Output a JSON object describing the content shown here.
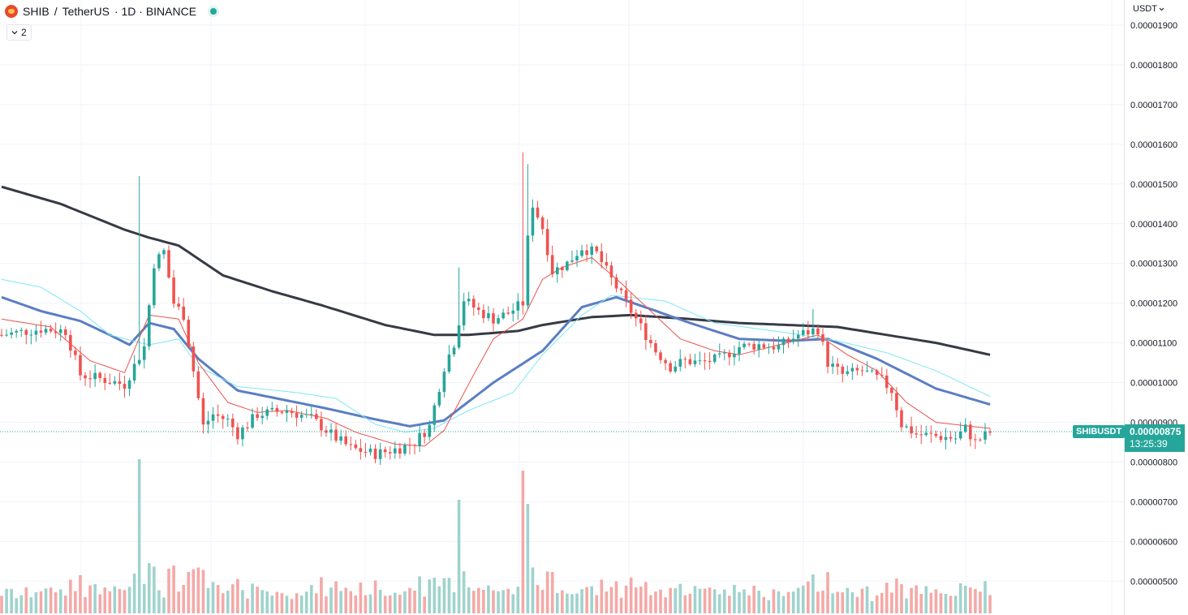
{
  "legend": {
    "symbol": "SHIB",
    "separator": "/",
    "quote_name": "TetherUS",
    "interval_exchange": "· 1D · BINANCE",
    "collapse_count": "2"
  },
  "currency_label": "USDT",
  "price_tag": {
    "symbol": "SHIBUSDT",
    "price": "0.00000875",
    "countdown": "13:25:39"
  },
  "colors": {
    "up": "#26a69a",
    "down": "#ef5350",
    "vol_up": "#9fd3cd",
    "vol_down": "#f4a9a7",
    "ma_fast": "#e8544e",
    "ma_mid": "#5b7ec2",
    "ma_light": "#7ee8f5",
    "ma_slow": "#363a45",
    "grid": "#f0f3fa"
  },
  "chart_data": {
    "type": "candlestick",
    "symbol": "SHIBUSDT",
    "exchange": "BINANCE",
    "interval": "1D",
    "currency": "USDT",
    "last_price": 8.75e-06,
    "y_ticks": [
      "0.00001900",
      "0.00001800",
      "0.00001700",
      "0.00001600",
      "0.00001500",
      "0.00001400",
      "0.00001300",
      "0.00001200",
      "0.00001100",
      "0.00001000",
      "0.00000900",
      "0.00000800",
      "0.00000700",
      "0.00000600",
      "0.00000500"
    ],
    "ylim": [
      4.58e-06,
      1.945e-05
    ],
    "price_anchors": [
      {
        "i": 0,
        "p": 11.2
      },
      {
        "i": 8,
        "p": 11.35
      },
      {
        "i": 13,
        "p": 11.3
      },
      {
        "i": 16,
        "p": 10.2
      },
      {
        "i": 20,
        "p": 10.1
      },
      {
        "i": 25,
        "p": 9.95
      },
      {
        "i": 29,
        "p": 10.9
      },
      {
        "i": 31,
        "p": 13.0
      },
      {
        "i": 33,
        "p": 13.3
      },
      {
        "i": 35,
        "p": 12.0
      },
      {
        "i": 37,
        "p": 11.7
      },
      {
        "i": 39,
        "p": 10.3
      },
      {
        "i": 41,
        "p": 8.9
      },
      {
        "i": 43,
        "p": 9.2
      },
      {
        "i": 46,
        "p": 9.05
      },
      {
        "i": 48,
        "p": 8.7
      },
      {
        "i": 52,
        "p": 9.2
      },
      {
        "i": 58,
        "p": 9.3
      },
      {
        "i": 63,
        "p": 9.1
      },
      {
        "i": 68,
        "p": 8.6
      },
      {
        "i": 71,
        "p": 8.35
      },
      {
        "i": 76,
        "p": 8.2
      },
      {
        "i": 81,
        "p": 8.35
      },
      {
        "i": 84,
        "p": 8.5
      },
      {
        "i": 87,
        "p": 8.9
      },
      {
        "i": 90,
        "p": 10.4
      },
      {
        "i": 92,
        "p": 11.0
      },
      {
        "i": 94,
        "p": 12.1
      },
      {
        "i": 97,
        "p": 11.8
      },
      {
        "i": 100,
        "p": 11.6
      },
      {
        "i": 103,
        "p": 11.75
      },
      {
        "i": 106,
        "p": 12.0
      },
      {
        "i": 107,
        "p": 13.6
      },
      {
        "i": 108,
        "p": 14.5
      },
      {
        "i": 110,
        "p": 13.9
      },
      {
        "i": 112,
        "p": 12.8
      },
      {
        "i": 115,
        "p": 13.0
      },
      {
        "i": 118,
        "p": 13.4
      },
      {
        "i": 121,
        "p": 13.25
      },
      {
        "i": 124,
        "p": 12.6
      },
      {
        "i": 127,
        "p": 12.0
      },
      {
        "i": 130,
        "p": 11.4
      },
      {
        "i": 133,
        "p": 10.8
      },
      {
        "i": 136,
        "p": 10.4
      },
      {
        "i": 139,
        "p": 10.55
      },
      {
        "i": 142,
        "p": 10.5
      },
      {
        "i": 146,
        "p": 10.6
      },
      {
        "i": 150,
        "p": 10.9
      },
      {
        "i": 154,
        "p": 10.95
      },
      {
        "i": 158,
        "p": 10.9
      },
      {
        "i": 162,
        "p": 11.2
      },
      {
        "i": 166,
        "p": 11.35
      },
      {
        "i": 168,
        "p": 10.5
      },
      {
        "i": 171,
        "p": 10.2
      },
      {
        "i": 175,
        "p": 10.3
      },
      {
        "i": 179,
        "p": 10.05
      },
      {
        "i": 181,
        "p": 9.8
      },
      {
        "i": 183,
        "p": 8.95
      },
      {
        "i": 186,
        "p": 8.7
      },
      {
        "i": 190,
        "p": 8.65
      },
      {
        "i": 194,
        "p": 8.6
      },
      {
        "i": 196,
        "p": 8.85
      },
      {
        "i": 198,
        "p": 8.5
      },
      {
        "i": 201,
        "p": 8.75
      }
    ],
    "ma_lines": [
      {
        "id": "ma_slow",
        "points": [
          [
            0,
            14.93
          ],
          [
            12,
            14.5
          ],
          [
            25,
            13.85
          ],
          [
            30,
            13.65
          ],
          [
            36,
            13.45
          ],
          [
            45,
            12.7
          ],
          [
            55,
            12.3
          ],
          [
            65,
            11.95
          ],
          [
            78,
            11.45
          ],
          [
            88,
            11.2
          ],
          [
            95,
            11.2
          ],
          [
            105,
            11.3
          ],
          [
            110,
            11.45
          ],
          [
            120,
            11.65
          ],
          [
            128,
            11.7
          ],
          [
            140,
            11.6
          ],
          [
            150,
            11.5
          ],
          [
            160,
            11.45
          ],
          [
            170,
            11.4
          ],
          [
            180,
            11.2
          ],
          [
            190,
            11.0
          ],
          [
            201,
            10.7
          ]
        ]
      },
      {
        "id": "ma_mid",
        "points": [
          [
            0,
            12.15
          ],
          [
            8,
            11.8
          ],
          [
            16,
            11.55
          ],
          [
            22,
            11.2
          ],
          [
            26,
            10.95
          ],
          [
            30,
            11.5
          ],
          [
            35,
            11.35
          ],
          [
            40,
            10.6
          ],
          [
            48,
            9.8
          ],
          [
            58,
            9.55
          ],
          [
            66,
            9.35
          ],
          [
            75,
            9.1
          ],
          [
            83,
            8.9
          ],
          [
            90,
            9.05
          ],
          [
            100,
            10.0
          ],
          [
            110,
            10.8
          ],
          [
            118,
            11.9
          ],
          [
            125,
            12.15
          ],
          [
            132,
            11.85
          ],
          [
            140,
            11.5
          ],
          [
            150,
            11.1
          ],
          [
            160,
            11.05
          ],
          [
            168,
            11.1
          ],
          [
            178,
            10.6
          ],
          [
            190,
            9.85
          ],
          [
            201,
            9.45
          ]
        ]
      },
      {
        "id": "ma_light",
        "points": [
          [
            0,
            12.6
          ],
          [
            8,
            12.4
          ],
          [
            16,
            11.8
          ],
          [
            22,
            11.2
          ],
          [
            30,
            10.95
          ],
          [
            36,
            11.1
          ],
          [
            40,
            10.4
          ],
          [
            48,
            9.9
          ],
          [
            60,
            9.75
          ],
          [
            68,
            9.6
          ],
          [
            76,
            8.95
          ],
          [
            82,
            8.75
          ],
          [
            88,
            8.85
          ],
          [
            95,
            9.3
          ],
          [
            104,
            9.75
          ],
          [
            110,
            10.7
          ],
          [
            118,
            11.7
          ],
          [
            124,
            12.2
          ],
          [
            135,
            12.05
          ],
          [
            145,
            11.5
          ],
          [
            160,
            11.25
          ],
          [
            170,
            11.05
          ],
          [
            180,
            10.75
          ],
          [
            190,
            10.3
          ],
          [
            201,
            9.65
          ]
        ]
      },
      {
        "id": "ma_fast",
        "points": [
          [
            0,
            11.6
          ],
          [
            10,
            11.4
          ],
          [
            18,
            10.55
          ],
          [
            25,
            10.25
          ],
          [
            30,
            11.7
          ],
          [
            36,
            11.6
          ],
          [
            40,
            10.5
          ],
          [
            46,
            9.5
          ],
          [
            52,
            9.25
          ],
          [
            58,
            9.3
          ],
          [
            66,
            9.1
          ],
          [
            72,
            8.75
          ],
          [
            80,
            8.45
          ],
          [
            86,
            8.4
          ],
          [
            90,
            8.8
          ],
          [
            96,
            10.2
          ],
          [
            100,
            11.1
          ],
          [
            106,
            11.6
          ],
          [
            110,
            12.6
          ],
          [
            114,
            12.9
          ],
          [
            120,
            13.15
          ],
          [
            126,
            12.5
          ],
          [
            132,
            11.8
          ],
          [
            138,
            11.1
          ],
          [
            145,
            10.8
          ],
          [
            150,
            10.7
          ],
          [
            158,
            10.95
          ],
          [
            166,
            11.2
          ],
          [
            172,
            10.7
          ],
          [
            178,
            10.3
          ],
          [
            184,
            9.5
          ],
          [
            190,
            9.0
          ],
          [
            197,
            8.9
          ],
          [
            201,
            8.85
          ]
        ]
      }
    ]
  }
}
